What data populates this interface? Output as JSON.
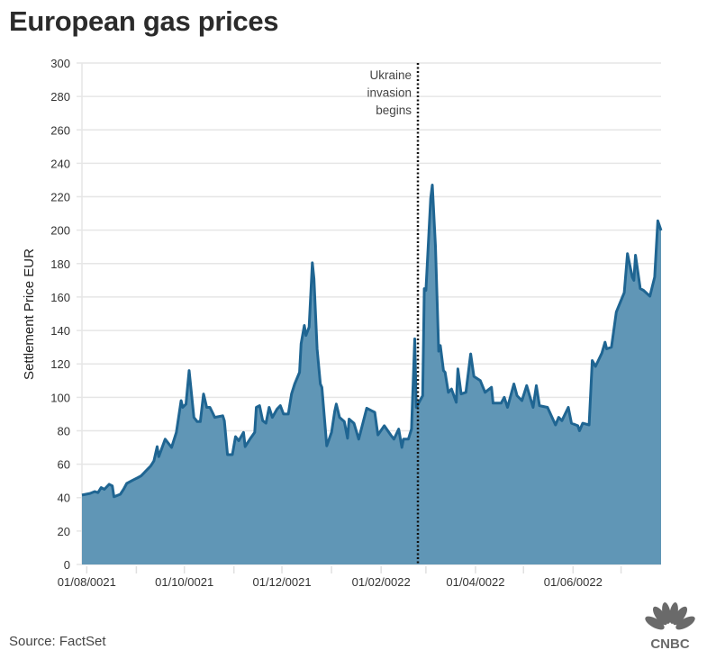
{
  "chart_data": {
    "type": "area",
    "title": "European gas prices",
    "ylabel": "Settlement Price EUR",
    "xlabel": "",
    "x_unit": "days since 01/08/2021",
    "ylim": [
      0,
      300
    ],
    "yticks": [
      0,
      20,
      40,
      60,
      80,
      100,
      120,
      140,
      160,
      180,
      200,
      220,
      240,
      260,
      280,
      300
    ],
    "xtick_labels": [
      {
        "label": "01/08/0021",
        "day": 0
      },
      {
        "label": "01/10/0021",
        "day": 61
      },
      {
        "label": "01/12/0021",
        "day": 122
      },
      {
        "label": "01/02/0022",
        "day": 184
      },
      {
        "label": "01/04/0022",
        "day": 243
      },
      {
        "label": "01/06/0022",
        "day": 304
      }
    ],
    "xtick_marks_days": [
      0,
      31,
      61,
      92,
      122,
      153,
      184,
      212,
      243,
      273,
      304,
      334
    ],
    "xlim": [
      -3,
      359
    ],
    "grid": true,
    "annotation": {
      "lines": [
        "Ukraine",
        "invasion",
        "begins"
      ],
      "day": 207
    },
    "fill_color": "#6096b6",
    "line_color": "#1f6592",
    "series": [
      {
        "name": "Settlement Price EUR",
        "points": [
          [
            -3,
            41.5
          ],
          [
            2,
            42.5
          ],
          [
            5,
            43.6
          ],
          [
            7,
            43
          ],
          [
            9,
            46
          ],
          [
            11,
            45
          ],
          [
            14,
            48
          ],
          [
            16,
            47
          ],
          [
            17,
            40.5
          ],
          [
            21,
            42
          ],
          [
            23,
            45
          ],
          [
            25,
            48.5
          ],
          [
            29,
            50.5
          ],
          [
            32,
            52
          ],
          [
            34,
            53
          ],
          [
            40,
            59
          ],
          [
            42,
            62
          ],
          [
            44,
            70.5
          ],
          [
            45,
            64.5
          ],
          [
            49,
            75
          ],
          [
            53,
            70
          ],
          [
            56,
            79
          ],
          [
            59,
            98
          ],
          [
            60,
            94
          ],
          [
            62,
            96
          ],
          [
            64,
            116
          ],
          [
            67,
            88
          ],
          [
            69,
            85.5
          ],
          [
            71,
            85.5
          ],
          [
            73,
            102
          ],
          [
            75,
            94
          ],
          [
            77,
            94
          ],
          [
            79,
            90
          ],
          [
            80,
            88
          ],
          [
            85,
            89
          ],
          [
            86,
            86
          ],
          [
            88,
            65.7
          ],
          [
            91,
            65.7
          ],
          [
            93,
            76.5
          ],
          [
            95,
            74
          ],
          [
            98,
            79
          ],
          [
            99,
            70.5
          ],
          [
            102,
            75
          ],
          [
            105,
            79
          ],
          [
            106,
            94
          ],
          [
            108,
            95
          ],
          [
            110,
            86
          ],
          [
            112,
            84.5
          ],
          [
            114,
            94
          ],
          [
            116,
            88
          ],
          [
            119,
            93
          ],
          [
            121,
            95
          ],
          [
            123,
            90
          ],
          [
            126,
            90
          ],
          [
            128,
            102
          ],
          [
            130,
            108
          ],
          [
            133,
            115
          ],
          [
            134,
            132
          ],
          [
            136,
            143
          ],
          [
            137,
            137
          ],
          [
            139,
            142
          ],
          [
            141,
            180.5
          ],
          [
            142,
            171
          ],
          [
            144,
            129
          ],
          [
            146,
            108
          ],
          [
            147,
            106
          ],
          [
            150,
            71
          ],
          [
            153,
            79
          ],
          [
            155,
            91.5
          ],
          [
            156,
            96
          ],
          [
            158,
            88
          ],
          [
            161,
            85.5
          ],
          [
            163,
            75.5
          ],
          [
            164,
            87
          ],
          [
            167,
            84.5
          ],
          [
            170,
            75
          ],
          [
            175,
            93.5
          ],
          [
            178,
            92
          ],
          [
            180,
            91
          ],
          [
            182,
            77.5
          ],
          [
            186,
            83
          ],
          [
            190,
            77.5
          ],
          [
            192,
            75
          ],
          [
            195,
            81
          ],
          [
            197,
            70
          ],
          [
            198,
            75
          ],
          [
            201,
            75
          ],
          [
            203,
            81
          ],
          [
            205,
            135
          ],
          [
            206,
            94
          ],
          [
            210,
            101
          ],
          [
            211,
            165
          ],
          [
            212,
            164
          ],
          [
            215,
            219
          ],
          [
            216,
            227
          ],
          [
            218,
            190.5
          ],
          [
            220,
            127.6
          ],
          [
            221,
            131
          ],
          [
            223,
            116
          ],
          [
            224,
            115
          ],
          [
            226,
            103
          ],
          [
            228,
            105
          ],
          [
            231,
            97
          ],
          [
            232,
            117
          ],
          [
            234,
            102
          ],
          [
            237,
            103
          ],
          [
            240,
            126
          ],
          [
            242,
            112.5
          ],
          [
            246,
            110
          ],
          [
            249,
            103
          ],
          [
            253,
            106
          ],
          [
            254,
            96.5
          ],
          [
            259,
            96.5
          ],
          [
            261,
            100
          ],
          [
            263,
            94
          ],
          [
            267,
            108
          ],
          [
            269,
            101
          ],
          [
            272,
            98
          ],
          [
            275,
            107
          ],
          [
            279,
            94
          ],
          [
            281,
            107
          ],
          [
            283,
            95
          ],
          [
            288,
            94
          ],
          [
            293,
            83.5
          ],
          [
            295,
            88
          ],
          [
            297,
            86
          ],
          [
            301,
            94
          ],
          [
            303,
            84.5
          ],
          [
            307,
            83
          ],
          [
            308,
            80
          ],
          [
            310,
            84.5
          ],
          [
            314,
            83.5
          ],
          [
            316,
            122
          ],
          [
            318,
            118.5
          ],
          [
            322,
            126.5
          ],
          [
            324,
            133
          ],
          [
            325,
            129
          ],
          [
            328,
            130
          ],
          [
            331,
            151
          ],
          [
            336,
            162.6
          ],
          [
            338,
            186
          ],
          [
            341,
            172
          ],
          [
            342,
            170
          ],
          [
            343,
            185
          ],
          [
            346,
            165
          ],
          [
            348,
            164
          ],
          [
            352,
            160.5
          ],
          [
            355,
            172
          ],
          [
            357,
            205.6
          ],
          [
            359,
            199.8
          ]
        ]
      }
    ]
  },
  "source": "Source: FactSet",
  "logo_text": "CNBC"
}
